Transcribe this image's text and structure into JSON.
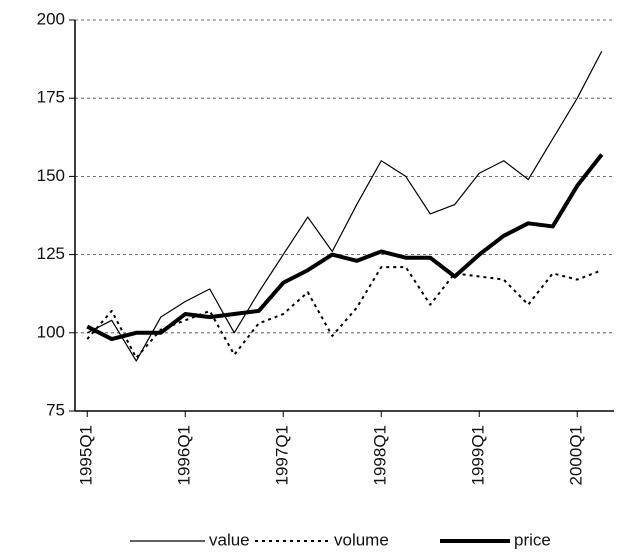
{
  "chart_data": {
    "type": "line",
    "categories": [
      "1995Q1",
      null,
      null,
      null,
      "1996Q1",
      null,
      null,
      null,
      "1997Q1",
      null,
      null,
      null,
      "1998Q1",
      null,
      null,
      null,
      "1999Q1",
      null,
      null,
      null,
      "2000Q1",
      null
    ],
    "series": [
      {
        "name": "value",
        "color": "#000000",
        "width": 1.2,
        "dash": "solid",
        "values": [
          100,
          104,
          91,
          105,
          110,
          114,
          100,
          113,
          125,
          137,
          126,
          141,
          155,
          150,
          138,
          141,
          151,
          155,
          149,
          162,
          175,
          190
        ]
      },
      {
        "name": "volume",
        "color": "#000000",
        "width": 2,
        "dash": "dotted",
        "values": [
          98,
          107,
          92,
          101,
          104,
          107,
          93,
          103,
          106,
          113,
          99,
          108,
          121,
          121,
          109,
          119,
          118,
          117,
          109,
          119,
          117,
          120
        ]
      },
      {
        "name": "price",
        "color": "#000000",
        "width": 4,
        "dash": "solid",
        "values": [
          102,
          98,
          100,
          100,
          106,
          105,
          106,
          107,
          116,
          120,
          125,
          123,
          126,
          124,
          124,
          118,
          125,
          131,
          135,
          134,
          147,
          157
        ]
      }
    ],
    "ylim": [
      75,
      200
    ],
    "yticks": [
      75,
      100,
      125,
      150,
      175,
      200
    ],
    "grid": true,
    "legend": "bottom"
  }
}
